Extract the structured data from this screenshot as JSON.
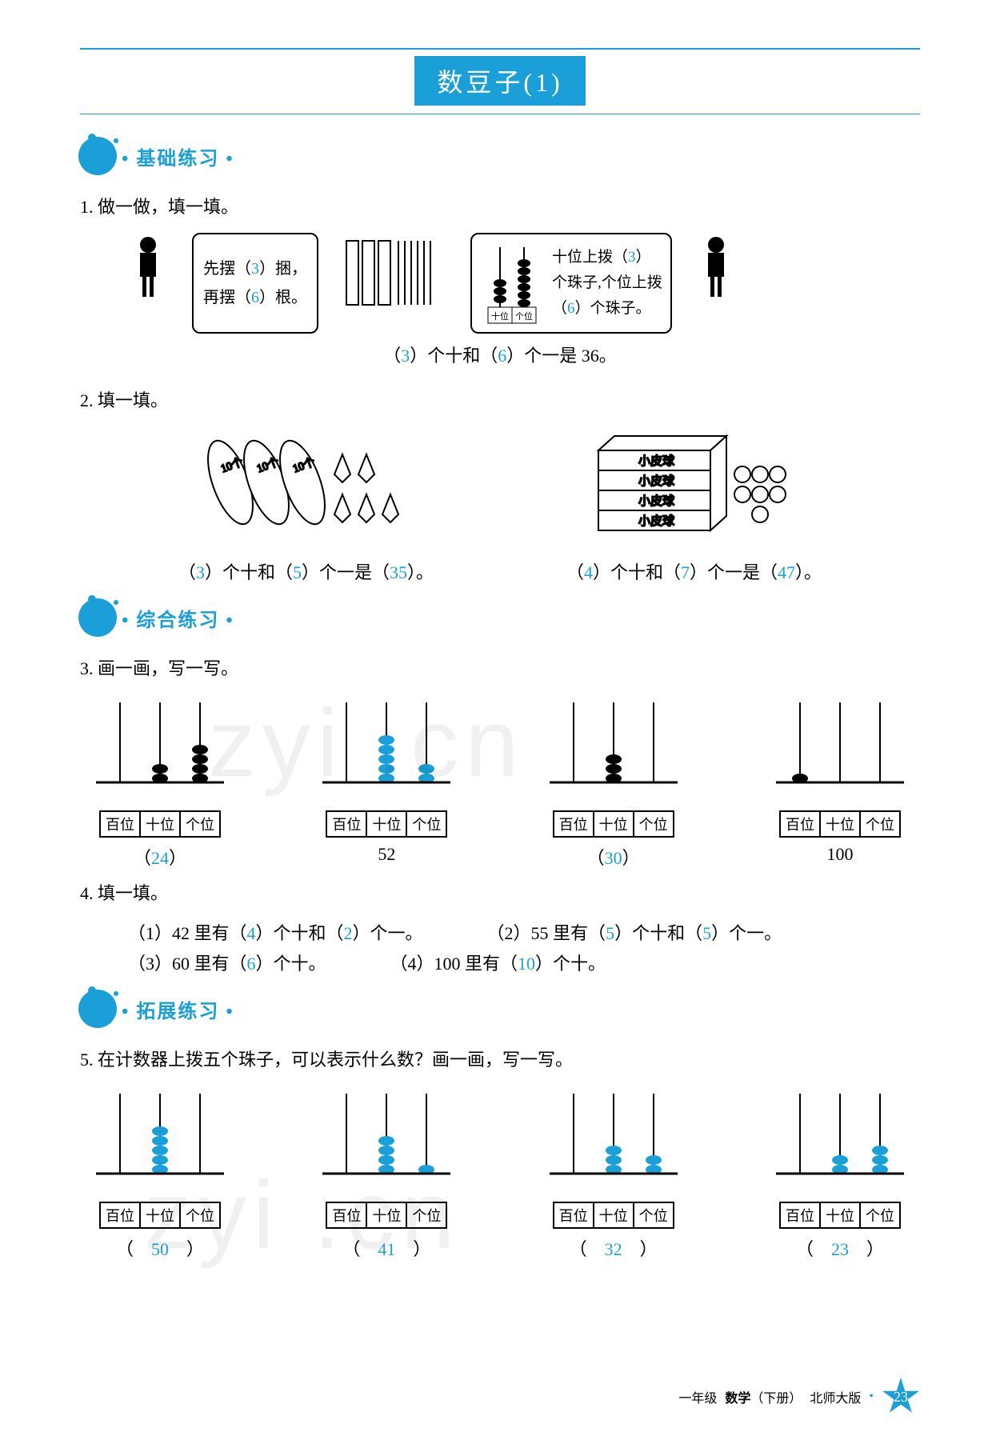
{
  "colors": {
    "accent": "#1a9fd8",
    "text": "#000000",
    "bg": "#ffffff"
  },
  "page_title": "数豆子(1)",
  "sections": {
    "basic": "基础练习",
    "comprehensive": "综合练习",
    "extension": "拓展练习"
  },
  "q1": {
    "title": "1. 做一做，填一填。",
    "left": {
      "line1_pre": "先摆（",
      "a1": "3",
      "line1_post": "）捆，",
      "line2_pre": "再摆（",
      "a2": "6",
      "line2_post": "）根。"
    },
    "right": {
      "line1_pre": "十位上拨（",
      "a1": "3",
      "line1_post": "）",
      "line2": "个珠子,个位上拨",
      "line3_pre": "（",
      "a2": "6",
      "line3_post": "）个珠子。",
      "place_tens": "十位",
      "place_ones": "个位"
    },
    "center": {
      "pre1": "（",
      "a1": "3",
      "mid1": "）个十和（",
      "a2": "6",
      "post": "）个一是 36。"
    }
  },
  "q2": {
    "title": "2. 填一填。",
    "left": {
      "pre1": "（",
      "a1": "3",
      "mid1": "）个十和（",
      "a2": "5",
      "mid2": "）个一是（",
      "a3": "35",
      "post": "）。"
    },
    "right": {
      "pre1": "（",
      "a1": "4",
      "mid1": "）个十和（",
      "a2": "7",
      "mid2": "）个一是（",
      "a3": "47",
      "post": "）。"
    },
    "box_labels": [
      "小皮球",
      "小皮球",
      "小皮球",
      "小皮球"
    ]
  },
  "q3": {
    "title": "3. 画一画，写一写。",
    "places": {
      "h": "百位",
      "t": "十位",
      "o": "个位"
    },
    "items": [
      {
        "beads": [
          0,
          2,
          4
        ],
        "label": "（",
        "ans": "24",
        "label_post": "）",
        "is_ans": true
      },
      {
        "beads": [
          0,
          5,
          2
        ],
        "label": "",
        "ans": "52",
        "label_post": "",
        "is_ans": false
      },
      {
        "beads": [
          0,
          3,
          0
        ],
        "label": "（",
        "ans": "30",
        "label_post": "）",
        "is_ans": true
      },
      {
        "beads": [
          1,
          0,
          0
        ],
        "label": "",
        "ans": "100",
        "label_post": "",
        "is_ans": false
      }
    ]
  },
  "q4": {
    "title": "4. 填一填。",
    "rows": [
      [
        {
          "pre": "（1）42 里有（",
          "a1": "4",
          "mid": "）个十和（",
          "a2": "2",
          "post": "）个一。"
        },
        {
          "pre": "（2）55 里有（",
          "a1": "5",
          "mid": "）个十和（",
          "a2": "5",
          "post": "）个一。"
        }
      ],
      [
        {
          "pre": "（3）60 里有（",
          "a1": "6",
          "mid": "）个十。",
          "a2": "",
          "post": ""
        },
        {
          "pre": "（4）100 里有（",
          "a1": "10",
          "mid": "）个十。",
          "a2": "",
          "post": ""
        }
      ]
    ]
  },
  "q5": {
    "title": "5. 在计数器上拨五个珠子，可以表示什么数？画一画，写一写。",
    "items": [
      {
        "beads": [
          0,
          5,
          0
        ],
        "ans": "50"
      },
      {
        "beads": [
          0,
          4,
          1
        ],
        "ans": "41"
      },
      {
        "beads": [
          0,
          3,
          2
        ],
        "ans": "32"
      },
      {
        "beads": [
          0,
          2,
          3
        ],
        "ans": "23"
      }
    ]
  },
  "footer": {
    "grade": "一年级",
    "subject": "数学",
    "term": "（下册）",
    "edition": "北师大版",
    "page": "23"
  },
  "watermark": "zyi .cn"
}
